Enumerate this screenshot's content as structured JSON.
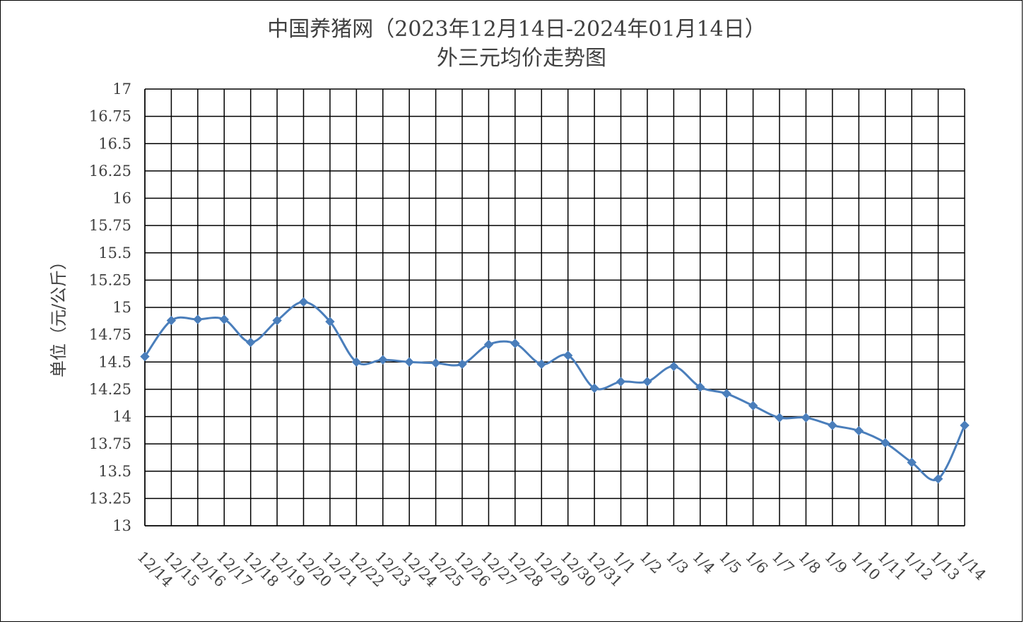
{
  "chart_data": {
    "type": "line",
    "title_line1": "中国养猪网（2023年12月14日-2024年01月14日）",
    "title_line2": "外三元均价走势图",
    "xlabel": "",
    "ylabel": "单位（元/公斤）",
    "ylim": [
      13,
      17
    ],
    "yticks": [
      "13",
      "13.25",
      "13.5",
      "13.75",
      "14",
      "14.25",
      "14.5",
      "14.75",
      "15",
      "15.25",
      "15.5",
      "15.75",
      "16",
      "16.25",
      "16.5",
      "16.75",
      "17"
    ],
    "categories": [
      "12/14",
      "12/15",
      "12/16",
      "12/17",
      "12/18",
      "12/19",
      "12/20",
      "12/21",
      "12/22",
      "12/23",
      "12/24",
      "12/25",
      "12/26",
      "12/27",
      "12/28",
      "12/29",
      "12/30",
      "12/31",
      "1/1",
      "1/2",
      "1/3",
      "1/4",
      "1/5",
      "1/6",
      "1/7",
      "1/8",
      "1/9",
      "1/10",
      "1/11",
      "1/12",
      "1/13",
      "1/14"
    ],
    "series": [
      {
        "name": "",
        "color": "#4a7ebb",
        "values": [
          14.55,
          14.88,
          14.89,
          14.89,
          14.68,
          14.88,
          15.05,
          14.87,
          14.5,
          14.52,
          14.5,
          14.49,
          14.48,
          14.66,
          14.67,
          14.48,
          14.56,
          14.26,
          14.32,
          14.32,
          14.46,
          14.27,
          14.21,
          14.1,
          13.99,
          13.99,
          13.92,
          13.87,
          13.76,
          13.58,
          13.43,
          13.92
        ]
      }
    ],
    "grid": true,
    "legend": "none",
    "marker": "diamond"
  }
}
